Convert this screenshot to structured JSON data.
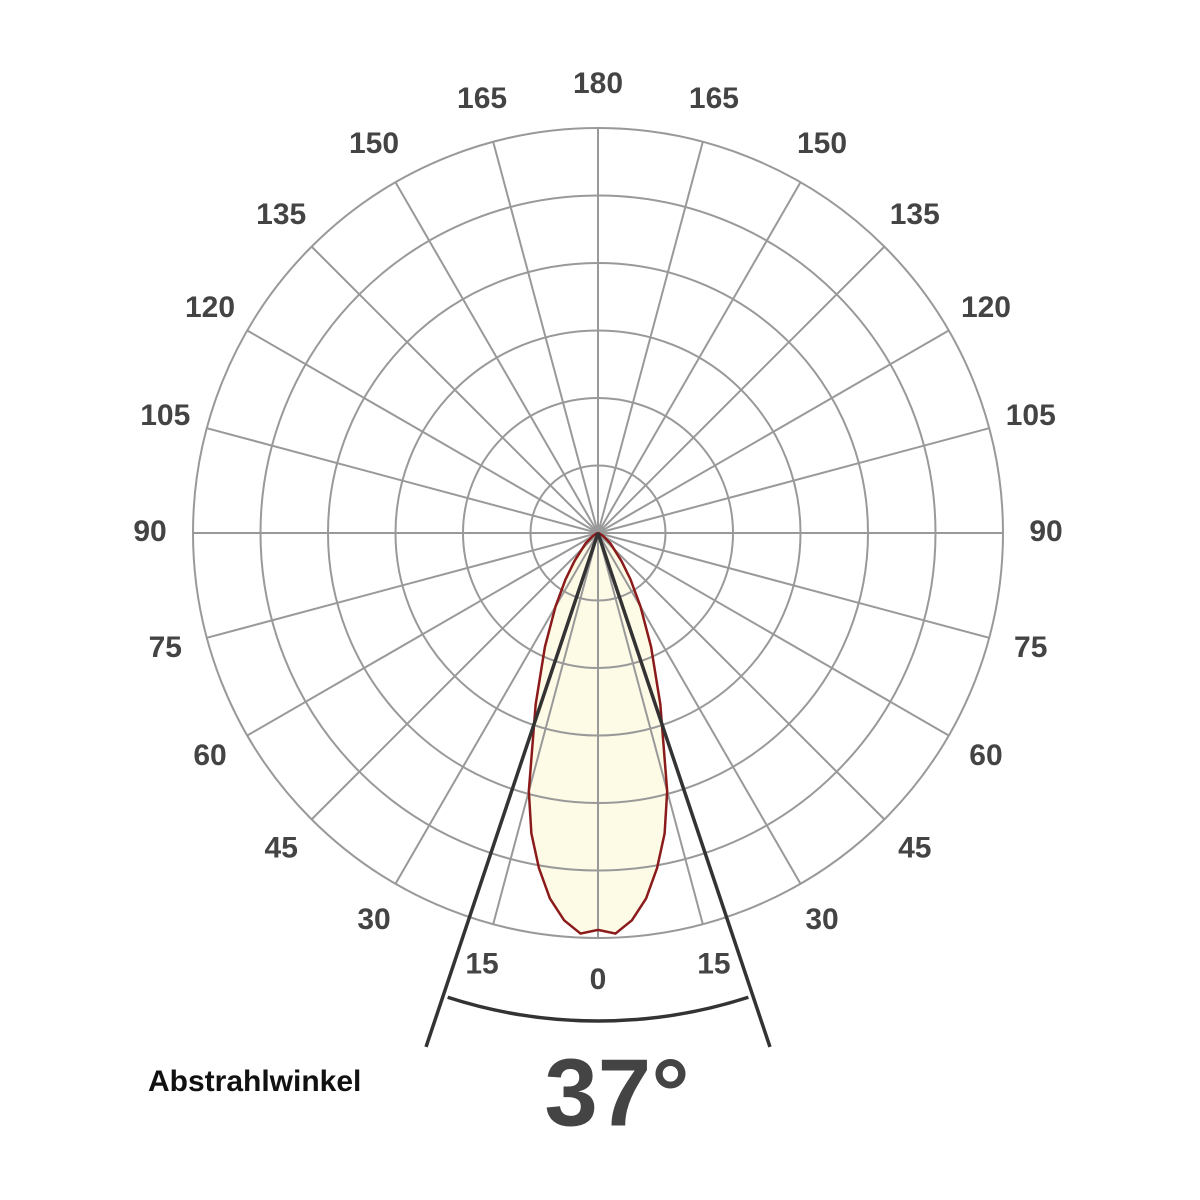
{
  "chart_data": {
    "type": "polar",
    "angle_ticks": [
      0,
      15,
      30,
      45,
      60,
      75,
      90,
      105,
      120,
      135,
      150,
      165,
      180
    ],
    "rlim": [
      0,
      6
    ],
    "rticks": [
      1,
      2,
      3,
      4,
      5,
      6
    ],
    "angles": [
      0,
      2.5,
      5,
      7.5,
      10,
      12.5,
      15,
      20,
      25,
      30,
      35,
      40,
      50,
      60,
      75,
      90
    ],
    "values": [
      5.88,
      5.94,
      5.76,
      5.46,
      5.04,
      4.56,
      3.96,
      2.7,
      1.86,
      1.26,
      0.84,
      0.54,
      0.24,
      0.09,
      0.02,
      0
    ],
    "color": "#8b1a1a",
    "fill": "#fdfae6",
    "grid_color": "#999999",
    "beam_angle": 37,
    "beam_angle_label": "37°",
    "annotation": "Abstrahlwinkel"
  }
}
